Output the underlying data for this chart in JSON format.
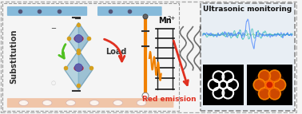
{
  "bg_color": "#f0f0f0",
  "title": "Ultrasonic monitoring",
  "title_fontsize": 9,
  "substitution_text": "Substitution",
  "load_text": "Load",
  "mn_text": "Mn",
  "mn_superscript": "2+",
  "red_emission_text": "Red emission",
  "blue_bar_color": "#7ab4d8",
  "pink_bar_color": "#f0c0a0",
  "dashed_box_color": "#888888",
  "right_box_bg": "#e8eef4",
  "arrow_green": "#50c020",
  "arrow_red": "#e03020",
  "arrow_orange": "#f08000",
  "energy_bar_color": "#222222",
  "wave_color_teal": "#40c0c0",
  "wave_color_blue": "#4080ff",
  "wave_color_green": "#40c060"
}
